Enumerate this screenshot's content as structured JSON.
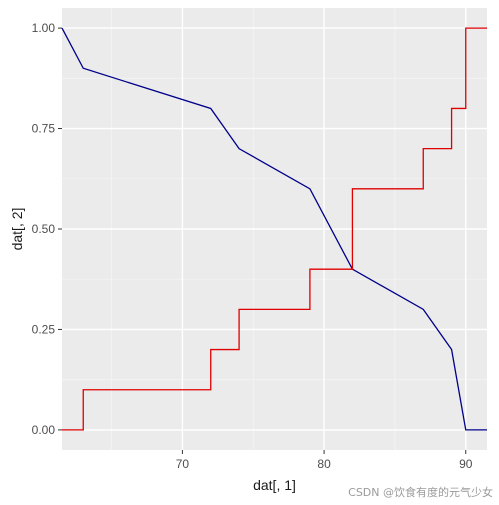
{
  "chart_data": {
    "type": "line",
    "xlabel": "dat[, 1]",
    "ylabel": "dat[, 2]",
    "xlim": [
      61.5,
      91.5
    ],
    "ylim": [
      -0.05,
      1.05
    ],
    "x_ticks": [
      70,
      80,
      90
    ],
    "x_tick_labels": [
      "70",
      "80",
      "90"
    ],
    "y_ticks": [
      0,
      0.25,
      0.5,
      0.75,
      1
    ],
    "y_tick_labels": [
      "0.00",
      "0.25",
      "0.50",
      "0.75",
      "1.00"
    ],
    "grid": true,
    "series": [
      {
        "style": "line",
        "color": "#00008B",
        "x": [
          61.5,
          63,
          72,
          74,
          79,
          82,
          87,
          89,
          90,
          91.5
        ],
        "y": [
          1.0,
          0.9,
          0.8,
          0.7,
          0.6,
          0.4,
          0.3,
          0.2,
          0.0,
          0.0
        ]
      },
      {
        "style": "step",
        "color": "#E00000",
        "x": [
          61.5,
          63,
          72,
          74,
          79,
          82,
          87,
          89,
          90,
          91.5
        ],
        "y": [
          0.0,
          0.1,
          0.2,
          0.3,
          0.4,
          0.6,
          0.7,
          0.8,
          1.0,
          1.0
        ]
      }
    ]
  },
  "watermark": "CSDN @饮食有度的元气少女"
}
